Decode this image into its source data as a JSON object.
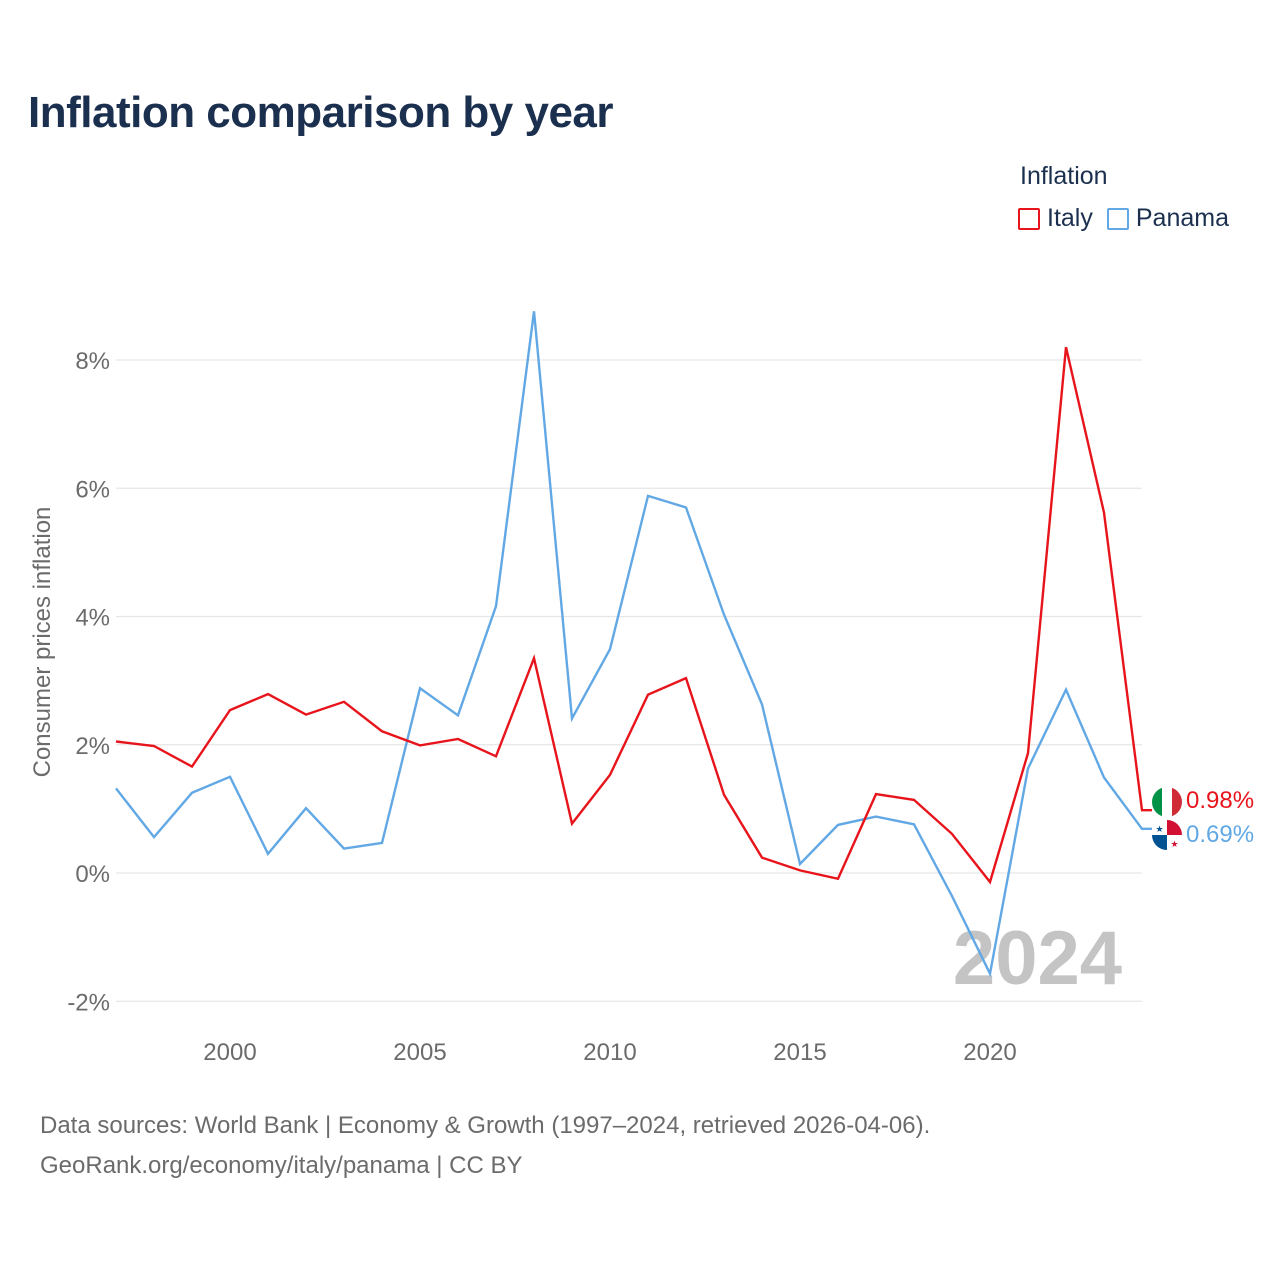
{
  "title": "Inflation comparison by year",
  "legend": {
    "title": "Inflation",
    "items": [
      {
        "label": "Italy",
        "color": "#e8141c"
      },
      {
        "label": "Panama",
        "color": "#62a8e5"
      }
    ]
  },
  "chart_data": {
    "type": "line",
    "title": "Inflation comparison by year",
    "ylabel": "Consumer prices inflation",
    "xlabel": "",
    "xlim": [
      1997,
      2024
    ],
    "ylim": [
      -2,
      9
    ],
    "yticks": [
      -2,
      0,
      2,
      4,
      6,
      8
    ],
    "ytick_labels": [
      "-2%",
      "0%",
      "2%",
      "4%",
      "6%",
      "8%"
    ],
    "xticks": [
      2000,
      2005,
      2010,
      2015,
      2020
    ],
    "xtick_labels": [
      "2000",
      "2005",
      "2010",
      "2015",
      "2020"
    ],
    "x": [
      1997,
      1998,
      1999,
      2000,
      2001,
      2002,
      2003,
      2004,
      2005,
      2006,
      2007,
      2008,
      2009,
      2010,
      2011,
      2012,
      2013,
      2014,
      2015,
      2016,
      2017,
      2018,
      2019,
      2020,
      2021,
      2022,
      2023,
      2024
    ],
    "series": [
      {
        "name": "Italy",
        "color": "#e8141c",
        "values": [
          2.05,
          1.98,
          1.66,
          2.54,
          2.79,
          2.47,
          2.67,
          2.21,
          1.99,
          2.09,
          1.82,
          3.35,
          0.77,
          1.53,
          2.78,
          3.04,
          1.22,
          0.24,
          0.04,
          -0.09,
          1.23,
          1.14,
          0.61,
          -0.14,
          1.87,
          8.2,
          5.62,
          0.98
        ],
        "end_label": "0.98%"
      },
      {
        "name": "Panama",
        "color": "#62a8e5",
        "values": [
          1.32,
          0.56,
          1.25,
          1.5,
          0.3,
          1.01,
          0.38,
          0.47,
          2.88,
          2.46,
          4.16,
          8.76,
          2.41,
          3.49,
          5.88,
          5.7,
          4.03,
          2.63,
          0.14,
          0.75,
          0.88,
          0.76,
          -0.36,
          -1.57,
          1.63,
          2.86,
          1.49,
          0.69
        ],
        "end_label": "0.69%"
      }
    ],
    "year_watermark": "2024",
    "grid": true
  },
  "source": {
    "line1": "Data sources: World Bank | Economy & Growth (1997–2024, retrieved 2026-04-06).",
    "line2": "GeoRank.org/economy/italy/panama | CC BY"
  }
}
